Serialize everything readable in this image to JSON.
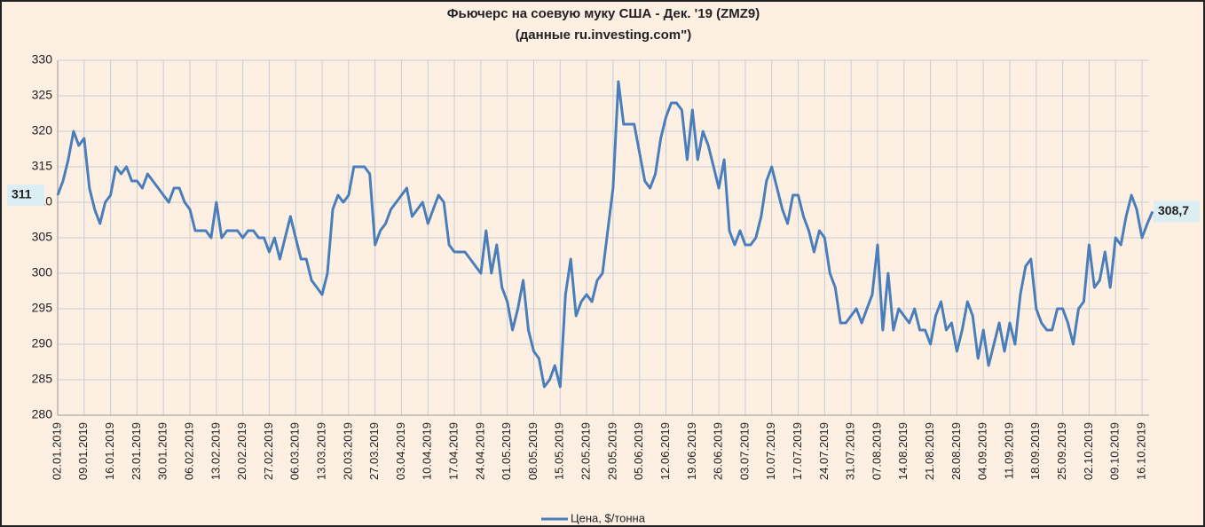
{
  "chart_data": {
    "type": "line",
    "title": "Фьючерс на соевую муку США - Дек. '19 (ZMZ9)",
    "subtitle": "(данные ru.investing.com\")",
    "categories": [
      "02.01.2019",
      null,
      null,
      null,
      null,
      "09.01.2019",
      null,
      null,
      null,
      null,
      "16.01.2019",
      null,
      null,
      null,
      null,
      "23.01.2019",
      null,
      null,
      null,
      null,
      "30.01.2019",
      null,
      null,
      null,
      null,
      "06.02.2019",
      null,
      null,
      null,
      null,
      "13.02.2019",
      null,
      null,
      null,
      null,
      "20.02.2019",
      null,
      null,
      null,
      null,
      "27.02.2019",
      null,
      null,
      null,
      null,
      "06.03.2019",
      null,
      null,
      null,
      null,
      "13.03.2019",
      null,
      null,
      null,
      null,
      "20.03.2019",
      null,
      null,
      null,
      null,
      "27.03.2019",
      null,
      null,
      null,
      null,
      "03.04.2019",
      null,
      null,
      null,
      null,
      "10.04.2019",
      null,
      null,
      null,
      null,
      "17.04.2019",
      null,
      null,
      null,
      null,
      "24.04.2019",
      null,
      null,
      null,
      null,
      "01.05.2019",
      null,
      null,
      null,
      null,
      "08.05.2019",
      null,
      null,
      null,
      null,
      "15.05.2019",
      null,
      null,
      null,
      null,
      "22.05.2019",
      null,
      null,
      null,
      null,
      "29.05.2019",
      null,
      null,
      null,
      null,
      "05.06.2019",
      null,
      null,
      null,
      null,
      "12.06.2019",
      null,
      null,
      null,
      null,
      "19.06.2019",
      null,
      null,
      null,
      null,
      "26.06.2019",
      null,
      null,
      null,
      null,
      "03.07.2019",
      null,
      null,
      null,
      null,
      "10.07.2019",
      null,
      null,
      null,
      null,
      "17.07.2019",
      null,
      null,
      null,
      null,
      "24.07.2019",
      null,
      null,
      null,
      null,
      "31.07.2019",
      null,
      null,
      null,
      null,
      "07.08.2019",
      null,
      null,
      null,
      null,
      "14.08.2019",
      null,
      null,
      null,
      null,
      "21.08.2019",
      null,
      null,
      null,
      null,
      "28.08.2019",
      null,
      null,
      null,
      null,
      "04.09.2019",
      null,
      null,
      null,
      null,
      "11.09.2019",
      null,
      null,
      null,
      null,
      "18.09.2019",
      null,
      null,
      null,
      null,
      "25.09.2019",
      null,
      null,
      null,
      null,
      "02.10.2019",
      null,
      null,
      null,
      null,
      "09.10.2019",
      null,
      null,
      null,
      null,
      "16.10.2019",
      null,
      null
    ],
    "series": [
      {
        "name": "Цена, $/тонна",
        "color": "#4a7ebb",
        "values": [
          311,
          313,
          316,
          320,
          318,
          319,
          312,
          309,
          307,
          310,
          311,
          315,
          314,
          315,
          313,
          313,
          312,
          314,
          313,
          312,
          311,
          310,
          312,
          312,
          310,
          309,
          306,
          306,
          306,
          305,
          310,
          305,
          306,
          306,
          306,
          305,
          306,
          306,
          305,
          305,
          303,
          305,
          302,
          305,
          308,
          305,
          302,
          302,
          299,
          298,
          297,
          300,
          309,
          311,
          310,
          311,
          315,
          315,
          315,
          314,
          304,
          306,
          307,
          309,
          310,
          311,
          312,
          308,
          309,
          310,
          307,
          309,
          311,
          310,
          304,
          303,
          303,
          303,
          302,
          301,
          300,
          306,
          300,
          304,
          298,
          296,
          292,
          295,
          299,
          292,
          289,
          288,
          284,
          285,
          287,
          284,
          297,
          302,
          294,
          296,
          297,
          296,
          299,
          300,
          306,
          312,
          327,
          321,
          321,
          321,
          317,
          313,
          312,
          314,
          319,
          322,
          324,
          324,
          323,
          316,
          323,
          316,
          320,
          318,
          315,
          312,
          316,
          306,
          304,
          306,
          304,
          304,
          305,
          308,
          313,
          315,
          312,
          309,
          307,
          311,
          311,
          308,
          306,
          303,
          306,
          305,
          300,
          298,
          293,
          293,
          294,
          295,
          293,
          295,
          297,
          304,
          292,
          300,
          292,
          295,
          294,
          293,
          295,
          292,
          292,
          290,
          294,
          296,
          292,
          293,
          289,
          292,
          296,
          294,
          288,
          292,
          287,
          290,
          293,
          289,
          293,
          290,
          297,
          301,
          302,
          295,
          293,
          292,
          292,
          295,
          295,
          293,
          290,
          295,
          296,
          304,
          298,
          299,
          303,
          298,
          305,
          304,
          308,
          311,
          309,
          305,
          307,
          308.7
        ],
        "value_labels": [
          "311",
          null,
          null,
          null,
          null,
          null,
          null,
          null,
          null,
          null,
          null,
          null,
          null,
          null,
          null,
          null,
          null,
          null,
          null,
          null,
          null,
          null,
          null,
          null,
          null,
          null,
          null,
          null,
          null,
          null,
          null,
          null,
          null,
          null,
          null,
          null,
          null,
          null,
          null,
          null,
          null,
          null,
          null,
          null,
          null,
          null,
          null,
          null,
          null,
          null,
          null,
          null,
          null,
          null,
          null,
          null,
          null,
          null,
          null,
          null,
          null,
          null,
          null,
          null,
          null,
          null,
          null,
          null,
          null,
          null,
          null,
          null,
          null,
          null,
          null,
          null,
          null,
          null,
          null,
          null,
          null,
          null,
          null,
          null,
          null,
          null,
          null,
          null,
          null,
          null,
          null,
          null,
          null,
          null,
          null,
          null,
          null,
          null,
          null,
          null,
          null,
          null,
          null,
          null,
          null,
          null,
          null,
          null,
          null,
          null,
          null,
          null,
          null,
          null,
          null,
          null,
          null,
          null,
          null,
          null,
          null,
          null,
          null,
          null,
          null,
          null,
          null,
          null,
          null,
          null,
          null,
          null,
          null,
          null,
          null,
          null,
          null,
          null,
          null,
          null,
          null,
          null,
          null,
          null,
          null,
          null,
          null,
          null,
          null,
          null,
          null,
          null,
          null,
          null,
          null,
          null,
          null,
          null,
          null,
          null,
          null,
          null,
          null,
          null,
          null,
          null,
          null,
          null,
          null,
          null,
          null,
          null,
          null,
          null,
          null,
          null,
          null,
          null,
          null,
          null,
          null,
          null,
          null,
          null,
          null,
          null,
          null,
          null,
          null,
          null,
          null,
          null,
          null,
          null,
          null,
          null,
          null,
          null,
          null,
          null,
          null,
          null,
          null,
          null,
          null,
          null,
          null,
          "308,7"
        ]
      }
    ],
    "ylim": [
      280,
      330
    ],
    "yticks": [
      280,
      285,
      290,
      295,
      300,
      305,
      310,
      315,
      320,
      325,
      330
    ],
    "grid": true,
    "legend": "bottom"
  }
}
